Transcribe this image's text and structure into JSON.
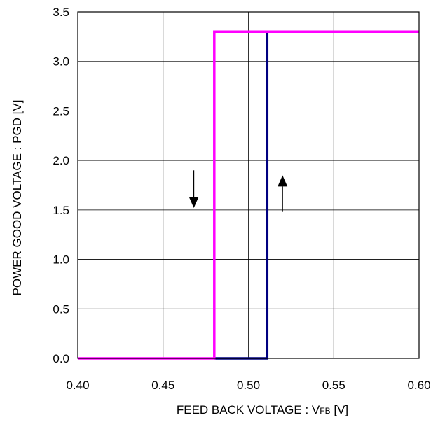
{
  "chart_data": {
    "type": "line",
    "title": "",
    "xlabel_main": "FEED BACK VOLTAGE : V",
    "xlabel_sub": "FB",
    "xlabel_unit": " [V]",
    "ylabel": "POWER GOOD VOLTAGE : PGD [V]",
    "xlim": [
      0.4,
      0.6
    ],
    "ylim": [
      0.0,
      3.5
    ],
    "x_ticks": [
      "0.40",
      "0.45",
      "0.50",
      "0.55",
      "0.60"
    ],
    "y_ticks": [
      "0.0",
      "0.5",
      "1.0",
      "1.5",
      "2.0",
      "2.5",
      "3.0",
      "3.5"
    ],
    "grid": true,
    "series": [
      {
        "color": "#ff00ff",
        "direction": "decreasing",
        "points": [
          [
            0.4,
            0.0
          ],
          [
            0.48,
            0.0
          ],
          [
            0.48,
            3.3
          ],
          [
            0.6,
            3.3
          ]
        ]
      },
      {
        "color": "#000080",
        "direction": "increasing",
        "points": [
          [
            0.48,
            0.0
          ],
          [
            0.511,
            0.0
          ],
          [
            0.511,
            3.3
          ]
        ]
      }
    ],
    "annotations": [
      {
        "icon": "arrow-down-icon",
        "x": 0.468,
        "y_from": 1.9,
        "y_to": 1.52
      },
      {
        "icon": "arrow-up-icon",
        "x": 0.52,
        "y_from": 1.48,
        "y_to": 1.85
      }
    ]
  }
}
